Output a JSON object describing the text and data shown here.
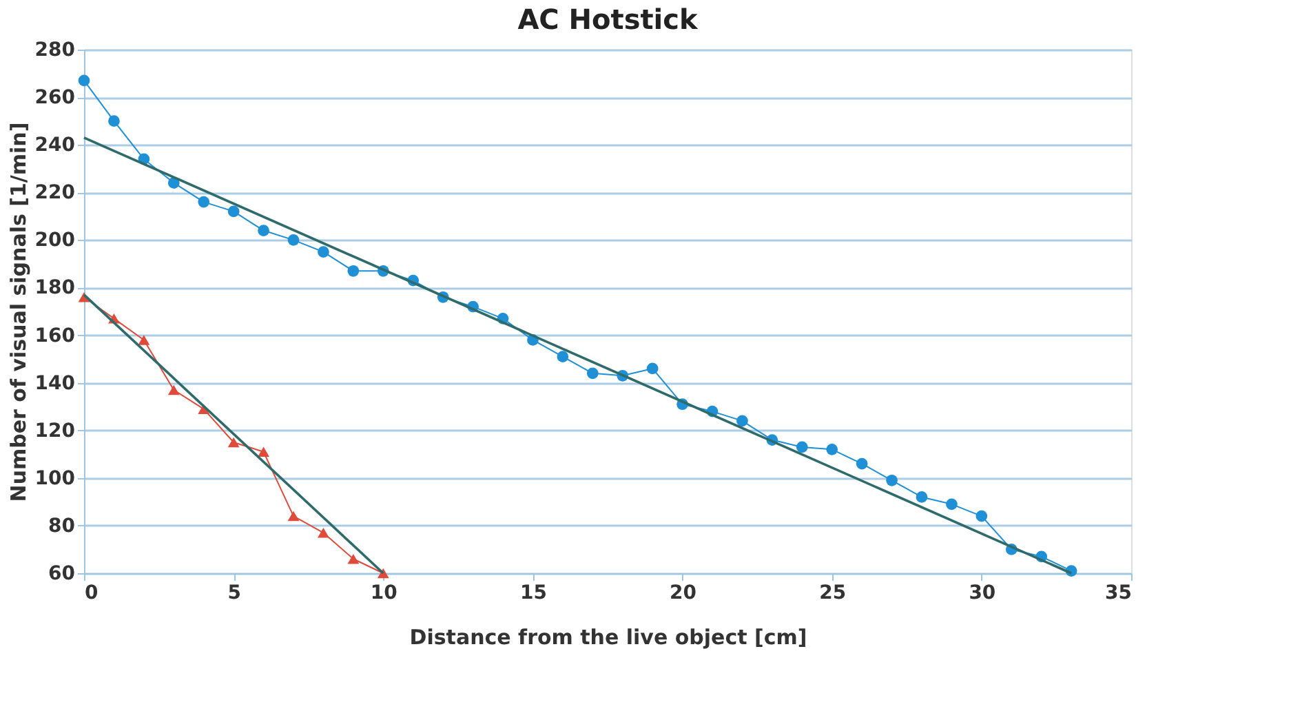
{
  "chart_data": {
    "type": "line",
    "title": "AC Hotstick",
    "xlabel": "Distance from the live object [cm]",
    "ylabel": "Number of visual signals [1/min]",
    "x": [
      0,
      1,
      2,
      3,
      4,
      5,
      6,
      7,
      8,
      9,
      10,
      11,
      12,
      13,
      14,
      15,
      16,
      17,
      18,
      19,
      20,
      21,
      22,
      23,
      24,
      25,
      26,
      27,
      28,
      29,
      30,
      31,
      32,
      33
    ],
    "series": [
      {
        "color": "#1f8fd6",
        "marker": "circle",
        "values": [
          267,
          250,
          234,
          224,
          216,
          212,
          204,
          200,
          195,
          187,
          187,
          183,
          176,
          172,
          167,
          158,
          151,
          144,
          143,
          146,
          131,
          128,
          124,
          116,
          113,
          112,
          106,
          99,
          92,
          89,
          84,
          70,
          67,
          61
        ]
      },
      {
        "color": "#e04a3a",
        "marker": "triangle",
        "x": [
          0,
          1,
          2,
          3,
          4,
          5,
          6,
          7,
          8,
          9,
          10
        ],
        "values": [
          176,
          167,
          158,
          137,
          129,
          115,
          111,
          84,
          77,
          66,
          60
        ]
      },
      {
        "type": "line",
        "color": "#2f6b6b",
        "marker": "none",
        "x": [
          0,
          33
        ],
        "values": [
          243,
          60
        ]
      },
      {
        "type": "line",
        "color": "#2f6b6b",
        "marker": "none",
        "x": [
          0,
          10
        ],
        "values": [
          177,
          60
        ]
      }
    ],
    "xlim": [
      0,
      35
    ],
    "xticks": [
      0,
      5,
      10,
      15,
      20,
      25,
      30,
      35
    ],
    "ylim": [
      60,
      280
    ],
    "yticks": [
      60,
      80,
      100,
      120,
      140,
      160,
      180,
      200,
      220,
      240,
      260,
      280
    ],
    "grid": "y"
  }
}
